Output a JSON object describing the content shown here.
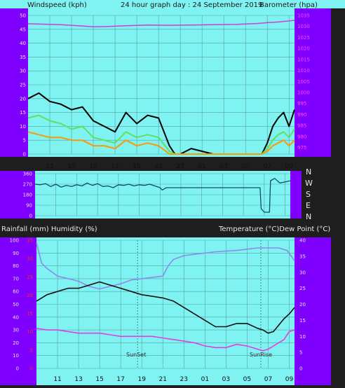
{
  "header": {
    "left": "Windspeed (kph)",
    "center": "24 hour graph day : 24 September 2019",
    "right": "Barometer (hpa)"
  },
  "middle_header": {
    "left": "Rainfall (mm)  Humidity (%)",
    "right": "Temperature (°C)Dew Point (°C)"
  },
  "x_tick_labels": [
    "11",
    "13",
    "15",
    "17",
    "19",
    "21",
    "23",
    "01",
    "03",
    "05",
    "07",
    "09"
  ],
  "directions": [
    "N",
    "W",
    "S",
    "E",
    "N"
  ],
  "annotations": {
    "sunset": "SunSet",
    "sunrise": "SunRise"
  },
  "colors": {
    "plot_bg": "#7ff2f2",
    "axis_panel": "#8000ff",
    "grid": "#5aa0a0",
    "pressure": "#d040d0",
    "wind_gust": "#000000",
    "wind_avg": "#60e060",
    "wind_low": "#ff9900",
    "direction": "#0a4f6f",
    "humidity": "#8c8ce6",
    "temperature": "#111111",
    "dewpoint": "#e040e0",
    "left_axis_text": "#e0e0e0",
    "right_axis_text": "#ff4aff",
    "rain_axis_text": "#ff2a2a"
  },
  "chart_data": [
    {
      "id": "wind_pressure",
      "type": "line",
      "x_range_hours": [
        9,
        33.5
      ],
      "left_axis": {
        "label": "Windspeed (kph)",
        "ylim": [
          0,
          50
        ],
        "ticks": [
          0,
          5,
          10,
          15,
          20,
          25,
          30,
          35,
          40,
          45,
          50
        ]
      },
      "right_axis": {
        "label": "Barometer (hpa)",
        "ylim": [
          972,
          1035
        ],
        "ticks": [
          975,
          980,
          985,
          990,
          995,
          1000,
          1005,
          1010,
          1015,
          1020,
          1025,
          1030,
          1035
        ]
      },
      "series": [
        {
          "key": "pressure",
          "axis": "right",
          "x": [
            9,
            12,
            14,
            15,
            16,
            17,
            18,
            20,
            22,
            24,
            26,
            28,
            30,
            31,
            32,
            33,
            33.5
          ],
          "y": [
            1031.2,
            1030.8,
            1030.2,
            1029.8,
            1029.9,
            1030.1,
            1030.3,
            1030.6,
            1030.5,
            1030.6,
            1030.8,
            1030.9,
            1031.3,
            1031.7,
            1032,
            1032.5,
            1032.8
          ]
        },
        {
          "key": "wind_gust",
          "axis": "left",
          "x": [
            9,
            10,
            11,
            12,
            13,
            14,
            15,
            16,
            17,
            18,
            19,
            20,
            21,
            22,
            22.5,
            23,
            24,
            25,
            26,
            27,
            28,
            29,
            30,
            30.5,
            31,
            31.5,
            32,
            32.5,
            33,
            33.5
          ],
          "y": [
            20,
            22,
            19,
            18,
            16,
            17,
            12,
            10,
            8,
            15,
            11,
            14,
            13,
            3,
            0,
            0,
            2,
            1,
            0,
            0,
            0,
            0,
            0,
            0,
            4,
            10,
            13,
            15,
            10,
            16
          ]
        },
        {
          "key": "wind_avg",
          "axis": "left",
          "x": [
            9,
            10,
            11,
            12,
            13,
            14,
            15,
            16,
            17,
            18,
            19,
            20,
            21,
            22,
            22.5,
            23,
            24,
            30.5,
            31,
            31.5,
            32,
            32.5,
            33,
            33.5
          ],
          "y": [
            13,
            14,
            12,
            11,
            9,
            10,
            6,
            5,
            4,
            8,
            6,
            7,
            6,
            1,
            0,
            0,
            0,
            0,
            2,
            5,
            7,
            8,
            6,
            9
          ]
        },
        {
          "key": "wind_low",
          "axis": "left",
          "x": [
            9,
            10,
            11,
            12,
            13,
            14,
            15,
            16,
            17,
            18,
            19,
            20,
            21,
            22,
            22.5,
            23,
            24,
            30.5,
            31,
            31.5,
            32,
            32.5,
            33,
            33.5
          ],
          "y": [
            8,
            7,
            6,
            6,
            5,
            5,
            3,
            3,
            2,
            5,
            3,
            4,
            3,
            0,
            0,
            0,
            0,
            0,
            1,
            3,
            4,
            5,
            3,
            5
          ]
        }
      ]
    },
    {
      "id": "wind_direction",
      "type": "line",
      "x_range_hours": [
        9,
        33.5
      ],
      "ylim": [
        0,
        360
      ],
      "series": [
        {
          "key": "direction",
          "x": [
            9,
            9.5,
            10,
            10.5,
            11,
            11.5,
            12,
            12.5,
            13,
            13.5,
            14,
            14.5,
            15,
            15.5,
            16,
            16.5,
            17,
            17.5,
            18,
            18.5,
            19,
            19.5,
            20,
            20.5,
            21,
            21.2,
            21.6,
            30.6,
            30.7,
            31,
            31.5,
            31.6,
            32,
            32.5,
            33,
            33.5
          ],
          "y": [
            270,
            265,
            275,
            250,
            270,
            245,
            260,
            250,
            265,
            255,
            280,
            260,
            275,
            250,
            255,
            240,
            265,
            260,
            270,
            255,
            265,
            260,
            270,
            255,
            240,
            220,
            240,
            240,
            60,
            30,
            30,
            300,
            320,
            280,
            290,
            300
          ]
        }
      ]
    },
    {
      "id": "temp_humidity",
      "type": "line",
      "x_range_hours": [
        9,
        33.5
      ],
      "left_axis": {
        "label": "Rainfall (mm)  Humidity (%)",
        "ylim": [
          0,
          100
        ],
        "ticks": [
          0,
          10,
          20,
          30,
          40,
          50,
          60,
          70,
          80,
          90,
          100
        ]
      },
      "rain_axis": {
        "ylim": [
          0,
          35
        ],
        "ticks": [
          0,
          5,
          10,
          15,
          20,
          25,
          30,
          35
        ]
      },
      "right_axis": {
        "label": "Temperature (°C)Dew Point (°C)",
        "ylim": [
          0,
          40
        ],
        "ticks": [
          0,
          5,
          10,
          15,
          20,
          25,
          30,
          35,
          40
        ]
      },
      "series": [
        {
          "key": "humidity",
          "axis": "left",
          "x": [
            9,
            9.5,
            10,
            11,
            12,
            13,
            14,
            15,
            16,
            17,
            18,
            19,
            20,
            21,
            21.5,
            22,
            23,
            24,
            26,
            28,
            30,
            31,
            32,
            32.8,
            33.5
          ],
          "y": [
            98,
            82,
            78,
            72,
            70,
            68,
            64,
            62,
            64,
            66,
            69,
            70,
            71,
            72,
            80,
            85,
            88,
            89,
            91,
            92,
            94,
            94,
            94,
            92,
            84
          ]
        },
        {
          "key": "temperature",
          "axis": "right",
          "x": [
            9,
            10,
            11,
            12,
            13,
            14,
            15,
            16,
            17,
            18,
            19,
            20,
            21,
            22,
            23,
            24,
            25,
            26,
            27,
            28,
            29,
            30,
            30.5,
            31,
            31.5,
            32,
            32.5,
            33,
            33.5
          ],
          "y": [
            21,
            23,
            24,
            25,
            25,
            26,
            27,
            26,
            25,
            24,
            23,
            22.5,
            22,
            21,
            19,
            17,
            15,
            13,
            13,
            14,
            14,
            12.5,
            12,
            11,
            11.5,
            13.5,
            15.5,
            17,
            19
          ]
        },
        {
          "key": "dewpoint",
          "axis": "right",
          "x": [
            9,
            10,
            11,
            12,
            13,
            14,
            15,
            16,
            17,
            18,
            19,
            20,
            21,
            22,
            23,
            24,
            25,
            26,
            27,
            28,
            29,
            30,
            30.5,
            31,
            31.5,
            32,
            32.5,
            33,
            33.5
          ],
          "y": [
            12.5,
            12,
            12,
            11.5,
            11,
            11,
            11,
            10.5,
            10,
            10,
            10,
            10,
            9.5,
            9,
            8.5,
            8,
            7,
            6.5,
            6.5,
            7.5,
            7,
            6,
            5.5,
            6,
            7,
            8,
            9,
            11.5,
            12
          ]
        }
      ]
    }
  ]
}
